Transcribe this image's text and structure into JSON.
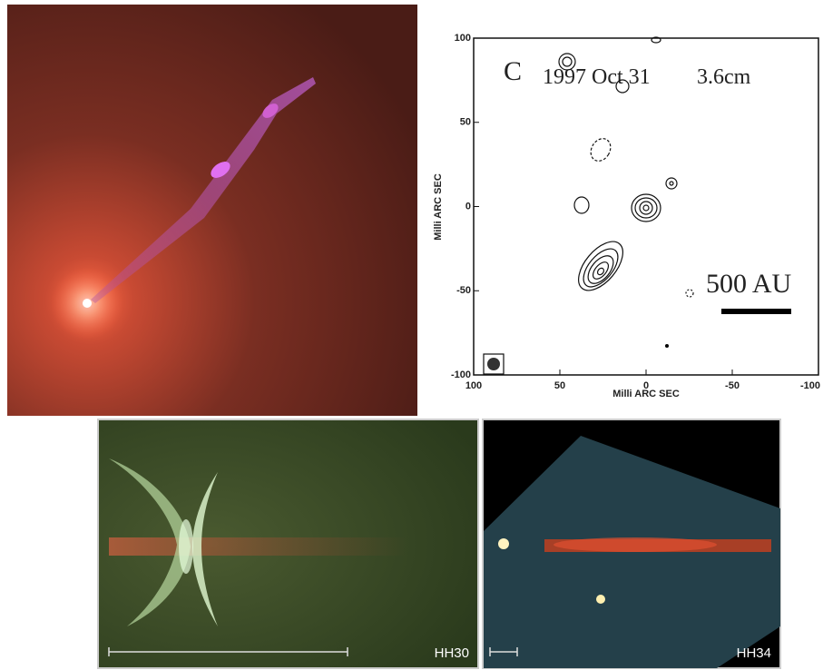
{
  "radio_map": {
    "label": "C",
    "epoch": "1997 Oct 31",
    "wavelength": "3.6cm",
    "scale": "500 AU",
    "xlabel": "Milli ARC SEC",
    "ylabel": "Milli ARC SEC",
    "xlim": [
      100,
      -100
    ],
    "ylim": [
      -100,
      100
    ],
    "xticks": [
      100,
      50,
      0,
      -50,
      -100
    ],
    "yticks": [
      100,
      50,
      0,
      -50,
      -100
    ]
  },
  "hh30": {
    "label": "HH30"
  },
  "hh34": {
    "label": "HH34"
  }
}
